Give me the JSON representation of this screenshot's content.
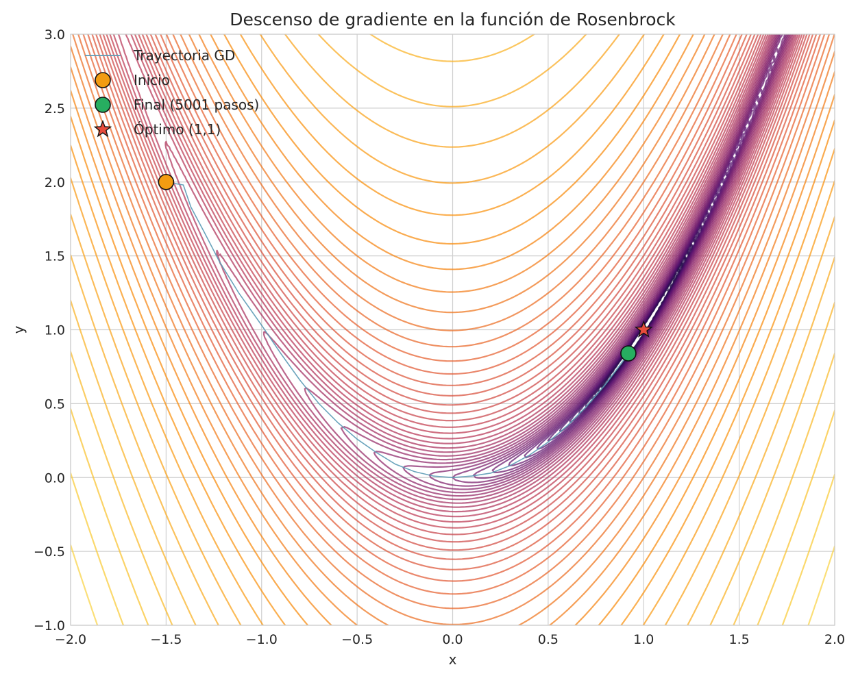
{
  "chart_data": {
    "type": "contour",
    "title": "Descenso de gradiente en la función de Rosenbrock",
    "xlabel": "x",
    "ylabel": "y",
    "xlim": [
      -2.0,
      2.0
    ],
    "ylim": [
      -1.0,
      3.0
    ],
    "x_ticks": [
      -2.0,
      -1.5,
      -1.0,
      -0.5,
      0.0,
      0.5,
      1.0,
      1.5,
      2.0
    ],
    "y_ticks": [
      -1.0,
      -0.5,
      0.0,
      0.5,
      1.0,
      1.5,
      2.0,
      2.5,
      3.0
    ],
    "x_tick_labels": [
      "−2.0",
      "−1.5",
      "−1.0",
      "−0.5",
      "0.0",
      "0.5",
      "1.0",
      "1.5",
      "2.0"
    ],
    "y_tick_labels": [
      "−1.0",
      "−0.5",
      "0.0",
      "0.5",
      "1.0",
      "1.5",
      "2.0",
      "2.5",
      "3.0"
    ],
    "grid": true,
    "legend_position": "top-left",
    "function": "f(x,y) = (1 - x)^2 + 100 (y - x^2)^2",
    "contour_scale": "log",
    "contour_level_count": 50,
    "colormap": "inferno",
    "series": [
      {
        "name": "Trayectoria GD",
        "kind": "line",
        "color": "#5a9ab5",
        "points": [
          [
            -1.5,
            2.0
          ],
          [
            -1.41,
            1.98
          ],
          [
            -1.37,
            1.83
          ],
          [
            -1.3,
            1.66
          ],
          [
            -1.22,
            1.46
          ],
          [
            -1.12,
            1.25
          ],
          [
            -1.0,
            1.03
          ],
          [
            -0.9,
            0.84
          ],
          [
            -0.8,
            0.66
          ],
          [
            -0.7,
            0.5
          ],
          [
            -0.6,
            0.37
          ],
          [
            -0.5,
            0.26
          ],
          [
            -0.4,
            0.17
          ],
          [
            -0.3,
            0.09
          ],
          [
            -0.2,
            0.04
          ],
          [
            -0.1,
            0.01
          ],
          [
            0.0,
            0.0
          ],
          [
            0.1,
            0.01
          ],
          [
            0.2,
            0.03
          ],
          [
            0.3,
            0.08
          ],
          [
            0.4,
            0.15
          ],
          [
            0.5,
            0.24
          ],
          [
            0.6,
            0.35
          ],
          [
            0.7,
            0.48
          ],
          [
            0.8,
            0.63
          ],
          [
            0.87,
            0.75
          ],
          [
            0.92,
            0.84
          ]
        ]
      },
      {
        "name": "Inicio",
        "kind": "marker",
        "marker": "circle",
        "color": "#f39c12",
        "points": [
          [
            -1.5,
            2.0
          ]
        ]
      },
      {
        "name": "Final (5001 pasos)",
        "kind": "marker",
        "marker": "circle",
        "color": "#27ae60",
        "points": [
          [
            0.92,
            0.84
          ]
        ]
      },
      {
        "name": "Óptimo (1,1)",
        "kind": "marker",
        "marker": "star",
        "color": "#e74c3c",
        "points": [
          [
            1.0,
            1.0
          ]
        ]
      }
    ]
  }
}
